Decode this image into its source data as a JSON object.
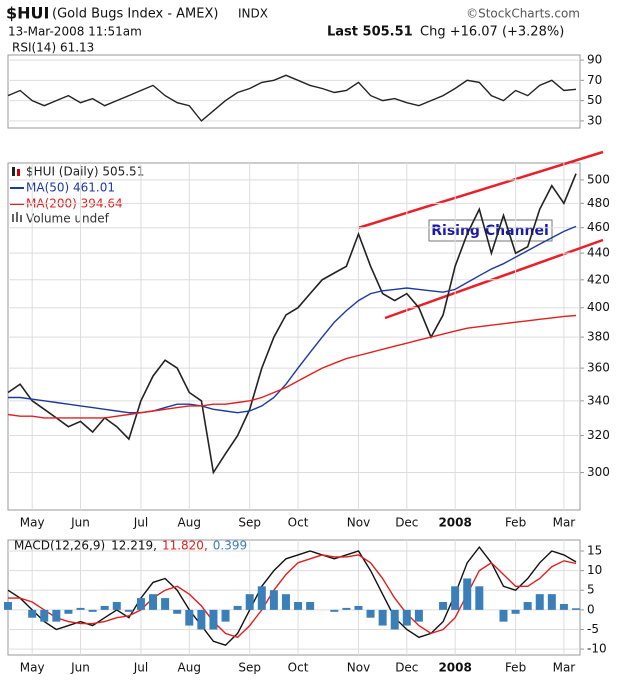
{
  "chart_data": [
    {
      "type": "line",
      "title": "RSI(14) 61.13",
      "ylim": [
        23,
        95
      ],
      "yticks": [
        30,
        50,
        70,
        90
      ],
      "grid": true,
      "series": [
        {
          "name": "RSI(14)",
          "color": "#222222",
          "values": [
            55,
            60,
            50,
            45,
            50,
            55,
            48,
            52,
            45,
            50,
            55,
            60,
            65,
            55,
            48,
            45,
            30,
            40,
            50,
            58,
            62,
            68,
            70,
            75,
            70,
            65,
            62,
            58,
            60,
            68,
            55,
            50,
            52,
            48,
            45,
            50,
            55,
            62,
            70,
            68,
            55,
            50,
            60,
            55,
            65,
            70,
            60,
            61.13
          ]
        }
      ]
    },
    {
      "type": "line",
      "symbol": "$HUI",
      "title": "(Gold Bugs Index - AMEX)",
      "exchange": "INDX",
      "date": "13-Mar-2008 11:51am",
      "last": "Last 505.51",
      "change": "Chg +16.07 (+3.28%)",
      "credit": "©StockCharts.com",
      "volume_label": "Volume undef",
      "annotation": "Rising Channel",
      "log_scale": true,
      "grid": true,
      "ylim": [
        281,
        515
      ],
      "yticks": [
        300,
        320,
        340,
        360,
        380,
        400,
        420,
        440,
        460,
        480,
        500
      ],
      "categories": [
        null,
        null,
        "May",
        null,
        null,
        null,
        "Jun",
        null,
        null,
        null,
        null,
        "Jul",
        null,
        null,
        null,
        "Aug",
        null,
        null,
        null,
        null,
        "Sep",
        null,
        null,
        null,
        "Oct",
        null,
        null,
        null,
        null,
        "Nov",
        null,
        null,
        null,
        "Dec",
        null,
        null,
        null,
        "2008",
        null,
        null,
        null,
        null,
        "Feb",
        null,
        null,
        null,
        "Mar",
        null
      ],
      "series": [
        {
          "name": "$HUI (Daily) 505.51",
          "color": "#222222",
          "values": [
            345,
            350,
            340,
            335,
            330,
            325,
            328,
            322,
            330,
            325,
            318,
            340,
            355,
            365,
            360,
            345,
            340,
            300,
            310,
            320,
            335,
            360,
            380,
            395,
            400,
            410,
            420,
            425,
            430,
            455,
            430,
            410,
            405,
            410,
            400,
            380,
            395,
            430,
            455,
            475,
            440,
            470,
            440,
            445,
            475,
            495,
            480,
            505.51
          ]
        },
        {
          "name": "MA(50) 461.01",
          "color": "#1c3a9e",
          "values": [
            342,
            342,
            341,
            340,
            339,
            338,
            337,
            336,
            335,
            334,
            333,
            333,
            334,
            336,
            338,
            338,
            337,
            335,
            334,
            333,
            334,
            337,
            342,
            350,
            360,
            370,
            380,
            390,
            398,
            405,
            410,
            412,
            413,
            414,
            413,
            412,
            411,
            413,
            418,
            423,
            428,
            432,
            437,
            442,
            447,
            452,
            457,
            461.01
          ]
        },
        {
          "name": "MA(200) 394.64",
          "color": "#e02020",
          "values": [
            332,
            331,
            331,
            330,
            330,
            330,
            330,
            330,
            330,
            331,
            332,
            333,
            334,
            335,
            336,
            337,
            337,
            338,
            338,
            339,
            340,
            342,
            345,
            348,
            352,
            356,
            360,
            363,
            366,
            368,
            370,
            372,
            374,
            376,
            378,
            380,
            382,
            384,
            386,
            387,
            388,
            389,
            390,
            391,
            392,
            393,
            394,
            394.64
          ]
        }
      ]
    },
    {
      "type": "line",
      "title": "MACD(12,26,9)",
      "grid": true,
      "ylim": [
        -11.5,
        17.8
      ],
      "yticks": [
        -10,
        -5,
        0,
        5,
        10,
        15
      ],
      "categories": [
        null,
        null,
        "May",
        null,
        null,
        null,
        "Jun",
        null,
        null,
        null,
        null,
        "Jul",
        null,
        null,
        null,
        "Aug",
        null,
        null,
        null,
        null,
        "Sep",
        null,
        null,
        null,
        "Oct",
        null,
        null,
        null,
        null,
        "Nov",
        null,
        null,
        null,
        "Dec",
        null,
        null,
        null,
        "2008",
        null,
        null,
        null,
        null,
        "Feb",
        null,
        null,
        null,
        "Mar",
        null
      ],
      "legend_values": [
        "12.219,",
        "11.820,",
        "0.399"
      ],
      "series": [
        {
          "name": "MACD",
          "color": "#111111",
          "style": "line",
          "values": [
            5,
            3,
            0,
            -3,
            -5,
            -4,
            -3,
            -4,
            -2,
            0,
            -2,
            3,
            7,
            8,
            5,
            0,
            -4,
            -8,
            -9,
            -6,
            0,
            6,
            10,
            13,
            14,
            15,
            14,
            13,
            14,
            15,
            10,
            4,
            -2,
            -5,
            -7,
            -6,
            -3,
            4,
            12,
            16,
            12,
            6,
            5,
            8,
            12,
            15,
            14,
            12.219
          ]
        },
        {
          "name": "Signal",
          "color": "#e02020",
          "style": "line",
          "values": [
            3,
            3,
            2,
            0,
            -2,
            -3,
            -3.5,
            -3.5,
            -3,
            -2,
            -1.5,
            0,
            3,
            5,
            6,
            4,
            1,
            -3,
            -6,
            -7,
            -4,
            0,
            5,
            9,
            12,
            13,
            14,
            13.5,
            13.5,
            14,
            12,
            8,
            3,
            -1,
            -4,
            -6,
            -5,
            -2,
            4,
            10,
            12,
            9,
            6,
            6,
            8,
            11,
            12.5,
            11.82
          ]
        },
        {
          "name": "Histogram",
          "color": "#3a7fb8",
          "style": "bar",
          "values": [
            2,
            0,
            -2,
            -3,
            -3,
            -1,
            0.5,
            -0.5,
            1,
            2,
            -0.5,
            3,
            4,
            3,
            -1,
            -4,
            -5,
            -5,
            -3,
            1,
            4,
            6,
            5,
            4,
            2,
            2,
            0,
            -0.5,
            0.5,
            1,
            -2,
            -4,
            -5,
            -4,
            -3,
            0,
            2,
            6,
            8,
            6,
            0,
            -3,
            -1,
            2,
            4,
            4,
            1.5,
            0.399
          ]
        }
      ]
    }
  ]
}
